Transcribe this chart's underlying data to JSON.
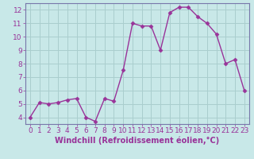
{
  "x": [
    0,
    1,
    2,
    3,
    4,
    5,
    6,
    7,
    8,
    9,
    10,
    11,
    12,
    13,
    14,
    15,
    16,
    17,
    18,
    19,
    20,
    21,
    22,
    23
  ],
  "y": [
    4.0,
    5.1,
    5.0,
    5.1,
    5.3,
    5.4,
    4.0,
    3.7,
    5.4,
    5.2,
    7.5,
    11.0,
    10.8,
    10.8,
    9.0,
    11.8,
    12.2,
    12.2,
    11.5,
    11.0,
    10.2,
    8.0,
    8.3,
    6.0
  ],
  "line_color": "#993399",
  "marker": "D",
  "marker_size": 2.5,
  "bg_color": "#c8e8e8",
  "grid_color": "#aacece",
  "text_color": "#993399",
  "xlabel": "Windchill (Refroidissement éolien,°C)",
  "ylabel_ticks": [
    4,
    5,
    6,
    7,
    8,
    9,
    10,
    11,
    12
  ],
  "xlim": [
    -0.5,
    23.5
  ],
  "ylim": [
    3.5,
    12.5
  ],
  "xtick_labels": [
    "0",
    "1",
    "2",
    "3",
    "4",
    "5",
    "6",
    "7",
    "8",
    "9",
    "10",
    "11",
    "12",
    "13",
    "14",
    "15",
    "16",
    "17",
    "18",
    "19",
    "20",
    "21",
    "22",
    "23"
  ],
  "line_width": 1.0,
  "font_size": 6.5,
  "xlabel_fontsize": 7,
  "spine_color": "#7777aa"
}
